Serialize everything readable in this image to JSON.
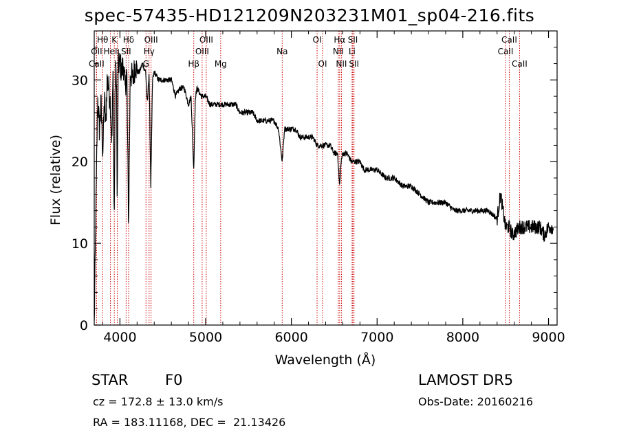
{
  "chart_data": {
    "type": "line",
    "title": "spec-57435-HD121209N203231M01_sp04-216.fits",
    "xlabel": "Wavelength (Å)",
    "ylabel": "Flux (relative)",
    "xlim": [
      3700,
      9100
    ],
    "ylim": [
      0,
      36
    ],
    "xticks": [
      4000,
      5000,
      6000,
      7000,
      8000,
      9000
    ],
    "yticks": [
      0,
      10,
      20,
      30
    ],
    "grid": false,
    "line_color": "#000000",
    "marker_color": "#cc0000",
    "series": [
      {
        "values_x": [
          3700,
          3720,
          3740,
          3760,
          3780,
          3800,
          3820,
          3835,
          3850,
          3870,
          3890,
          3905,
          3920,
          3933,
          3945,
          3960,
          3968,
          3980,
          4000,
          4020,
          4040,
          4060,
          4080,
          4101,
          4120,
          4150,
          4180,
          4200,
          4230,
          4260,
          4300,
          4320,
          4340,
          4360,
          4380,
          4400,
          4450,
          4500,
          4550,
          4600,
          4650,
          4700,
          4750,
          4800,
          4830,
          4850,
          4861,
          4880,
          4900,
          4950,
          5000,
          5050,
          5100,
          5150,
          5200,
          5250,
          5300,
          5350,
          5400,
          5450,
          5500,
          5550,
          5600,
          5650,
          5700,
          5750,
          5800,
          5850,
          5893,
          5920,
          5950,
          6000,
          6050,
          6100,
          6150,
          6200,
          6250,
          6300,
          6350,
          6400,
          6450,
          6500,
          6540,
          6563,
          6580,
          6600,
          6650,
          6700,
          6750,
          6800,
          6850,
          6900,
          6950,
          7000,
          7100,
          7200,
          7300,
          7400,
          7500,
          7600,
          7700,
          7800,
          7900,
          8000,
          8100,
          8200,
          8300,
          8400,
          8440,
          8498,
          8520,
          8542,
          8580,
          8662,
          8700,
          8750,
          8800,
          8850,
          8900,
          8950,
          9000,
          9050
        ],
        "values_y": [
          0,
          14,
          28,
          24,
          27,
          21,
          28,
          24,
          30,
          29,
          27,
          22,
          31,
          12,
          30,
          31,
          14,
          32,
          32,
          31,
          32,
          29,
          31,
          12,
          31,
          30,
          32,
          31,
          31,
          32,
          31,
          27,
          31,
          17,
          30,
          31,
          30,
          30,
          30,
          30,
          28,
          29,
          29,
          27,
          28,
          22,
          19,
          28,
          29,
          28,
          28,
          27,
          27,
          27,
          27,
          27,
          27,
          27,
          26,
          26,
          26,
          26,
          25,
          25,
          25,
          25,
          25,
          24,
          20,
          24,
          24,
          24,
          24,
          23,
          23,
          23,
          23,
          22,
          22,
          22,
          22,
          21,
          21,
          17,
          20,
          21,
          21,
          20,
          20,
          20,
          19,
          19,
          19,
          19,
          18,
          18,
          17,
          17,
          16,
          15,
          15,
          15,
          14,
          14,
          14,
          14,
          14,
          13,
          16,
          12,
          12,
          12,
          11,
          12,
          12,
          12,
          12,
          12,
          12,
          11,
          12,
          12
        ]
      }
    ],
    "lines": [
      {
        "label": "Hθ",
        "x": 3798,
        "row": 0
      },
      {
        "label": "OII",
        "x": 3727,
        "row": 1
      },
      {
        "label": "CaII",
        "x": 3727,
        "row": 2
      },
      {
        "label": "K",
        "x": 3934,
        "row": 0
      },
      {
        "label": "H",
        "x": 3969,
        "row": 2
      },
      {
        "label": "HeI",
        "x": 3889,
        "row": 1
      },
      {
        "label": "Hδ",
        "x": 4101,
        "row": 0
      },
      {
        "label": "SII",
        "x": 4072,
        "row": 1
      },
      {
        "label": "OIII",
        "x": 4363,
        "row": 0
      },
      {
        "label": "Hγ",
        "x": 4340,
        "row": 1
      },
      {
        "label": "G",
        "x": 4304,
        "row": 2
      },
      {
        "label": "OIII",
        "x": 5007,
        "row": 0
      },
      {
        "label": "OIII",
        "x": 4959,
        "row": 1
      },
      {
        "label": "Hβ",
        "x": 4861,
        "row": 2
      },
      {
        "label": "Mg",
        "x": 5175,
        "row": 2
      },
      {
        "label": "Na",
        "x": 5893,
        "row": 1
      },
      {
        "label": "OI",
        "x": 6300,
        "row": 0
      },
      {
        "label": "OI",
        "x": 6364,
        "row": 2
      },
      {
        "label": "Hα",
        "x": 6563,
        "row": 0
      },
      {
        "label": "NII",
        "x": 6548,
        "row": 1
      },
      {
        "label": "NII",
        "x": 6584,
        "row": 2
      },
      {
        "label": "SII",
        "x": 6717,
        "row": 0
      },
      {
        "label": "Li",
        "x": 6708,
        "row": 1
      },
      {
        "label": "SII",
        "x": 6731,
        "row": 2
      },
      {
        "label": "CaII",
        "x": 8542,
        "row": 0
      },
      {
        "label": "CaII",
        "x": 8498,
        "row": 1
      },
      {
        "label": "CaII",
        "x": 8662,
        "row": 2
      }
    ]
  },
  "info": {
    "class": "STAR",
    "subclass": "F0",
    "survey": "LAMOST DR5",
    "cz": "cz = 172.8 ± 13.0 km/s",
    "obs_date": "Obs-Date: 20160216",
    "coords": "RA = 183.11168, DEC =  21.13426"
  }
}
